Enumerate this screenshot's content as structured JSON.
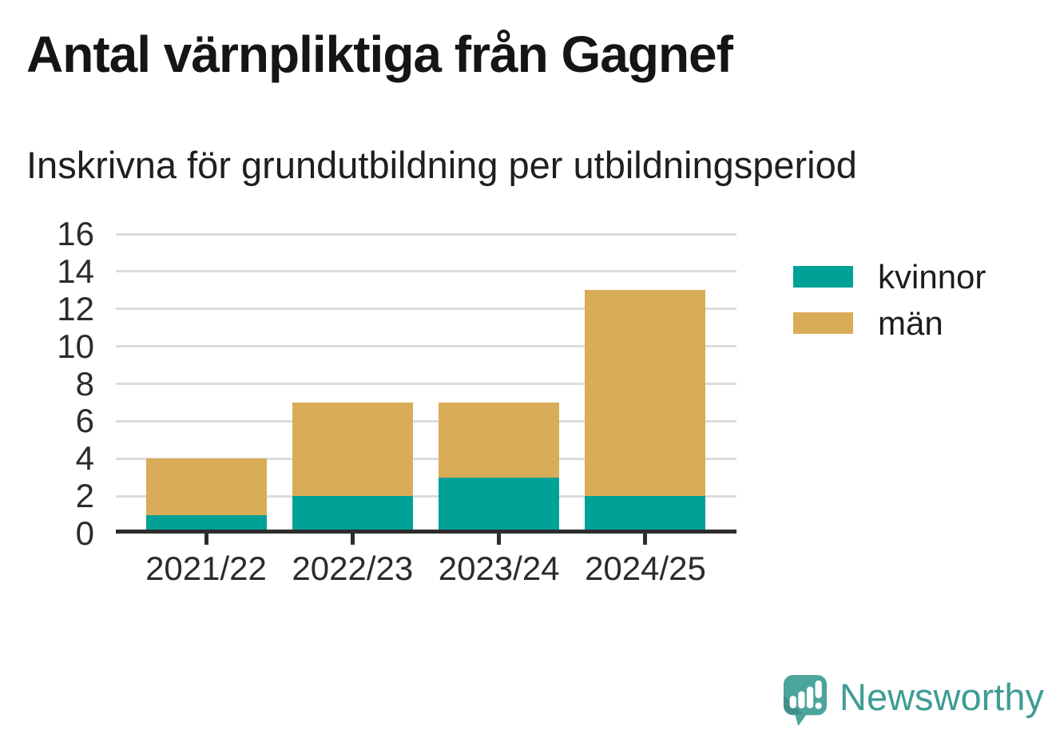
{
  "title": "Antal värnpliktiga från Gagnef",
  "subtitle": "Inskrivna för grundutbildning per utbildningsperiod",
  "chart_data": {
    "type": "bar",
    "stacked": true,
    "title": "Antal värnpliktiga från Gagnef",
    "subtitle": "Inskrivna för grundutbildning per utbildningsperiod",
    "categories": [
      "2021/22",
      "2022/23",
      "2023/24",
      "2024/25"
    ],
    "series": [
      {
        "name": "kvinnor",
        "color": "#00a196",
        "values": [
          1,
          2,
          3,
          2
        ]
      },
      {
        "name": "män",
        "color": "#d9ac58",
        "values": [
          3,
          5,
          4,
          11
        ]
      }
    ],
    "totals": [
      4,
      7,
      7,
      13
    ],
    "xlabel": "",
    "ylabel": "",
    "ylim": [
      0,
      16
    ],
    "ytick_step": 2,
    "grid": true,
    "legend_position": "right"
  },
  "footer": {
    "brand": "Newsworthy",
    "brand_color": "#3f9c94",
    "logo_color": "#4ba59b",
    "logo_icon": "speech-bubble-bar-chart-icon"
  }
}
